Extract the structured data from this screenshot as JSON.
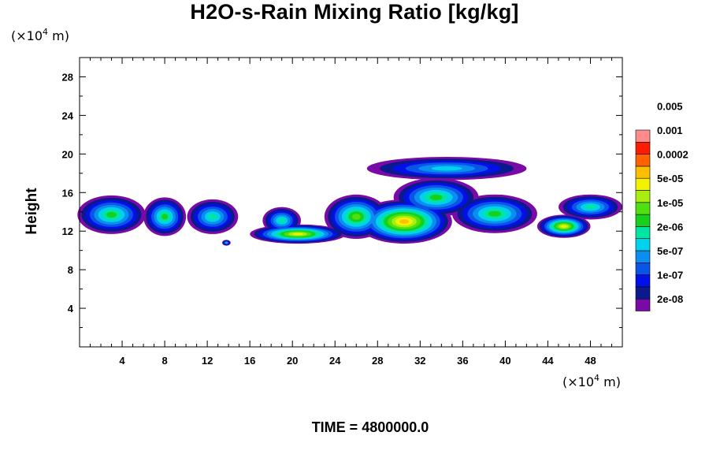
{
  "chart_data": {
    "type": "heatmap",
    "title": "H2O-s-Rain Mixing Ratio [kg/kg]",
    "ylabel": "Height",
    "xlabel": "",
    "x_unit": {
      "prefix": "(×10",
      "exp": "4",
      "suffix": " m)"
    },
    "y_unit": {
      "prefix": "(×10",
      "exp": "4",
      "suffix": " m)"
    },
    "footer": "TIME = 4800000.0",
    "xlim": [
      0,
      51
    ],
    "ylim": [
      0,
      30
    ],
    "x_ticks": [
      "4",
      "8",
      "12",
      "16",
      "20",
      "24",
      "28",
      "32",
      "36",
      "40",
      "44",
      "48"
    ],
    "y_ticks": [
      "4",
      "8",
      "12",
      "16",
      "20",
      "24",
      "28"
    ],
    "colorbar": {
      "colors": [
        "#7a0aa6",
        "#0a1a8c",
        "#0010e6",
        "#0a55e8",
        "#0a8ff0",
        "#00d2ee",
        "#00e6a0",
        "#16d01a",
        "#50e010",
        "#a8ee10",
        "#f2f200",
        "#ffbe00",
        "#ff6200",
        "#ff1c00",
        "#ff8c8c"
      ],
      "labels": [
        "2e-08",
        "1e-07",
        "5e-07",
        "2e-06",
        "1e-05",
        "5e-05",
        "0.0002",
        "0.001",
        "0.005"
      ]
    },
    "blobs": [
      {
        "x": 3.0,
        "y": 13.7,
        "rx": 3.2,
        "ry": 2.0,
        "peak": 7
      },
      {
        "x": 8.0,
        "y": 13.5,
        "rx": 2.0,
        "ry": 2.0,
        "peak": 7
      },
      {
        "x": 12.5,
        "y": 13.5,
        "rx": 2.4,
        "ry": 1.8,
        "peak": 6
      },
      {
        "x": 13.8,
        "y": 10.8,
        "rx": 0.4,
        "ry": 0.3,
        "peak": 5
      },
      {
        "x": 19.0,
        "y": 13.1,
        "rx": 1.8,
        "ry": 1.4,
        "peak": 6
      },
      {
        "x": 20.5,
        "y": 11.7,
        "rx": 4.5,
        "ry": 1.0,
        "peak": 10
      },
      {
        "x": 26.0,
        "y": 13.5,
        "rx": 3.0,
        "ry": 2.3,
        "peak": 8
      },
      {
        "x": 30.5,
        "y": 13.0,
        "rx": 4.5,
        "ry": 2.3,
        "peak": 11
      },
      {
        "x": 33.5,
        "y": 15.5,
        "rx": 4.0,
        "ry": 2.0,
        "peak": 7
      },
      {
        "x": 34.5,
        "y": 18.5,
        "rx": 7.5,
        "ry": 1.2,
        "peak": 5
      },
      {
        "x": 39.0,
        "y": 13.8,
        "rx": 4.0,
        "ry": 2.0,
        "peak": 7
      },
      {
        "x": 45.5,
        "y": 12.5,
        "rx": 2.5,
        "ry": 1.2,
        "peak": 10
      },
      {
        "x": 48.0,
        "y": 14.5,
        "rx": 3.0,
        "ry": 1.3,
        "peak": 6
      }
    ]
  }
}
